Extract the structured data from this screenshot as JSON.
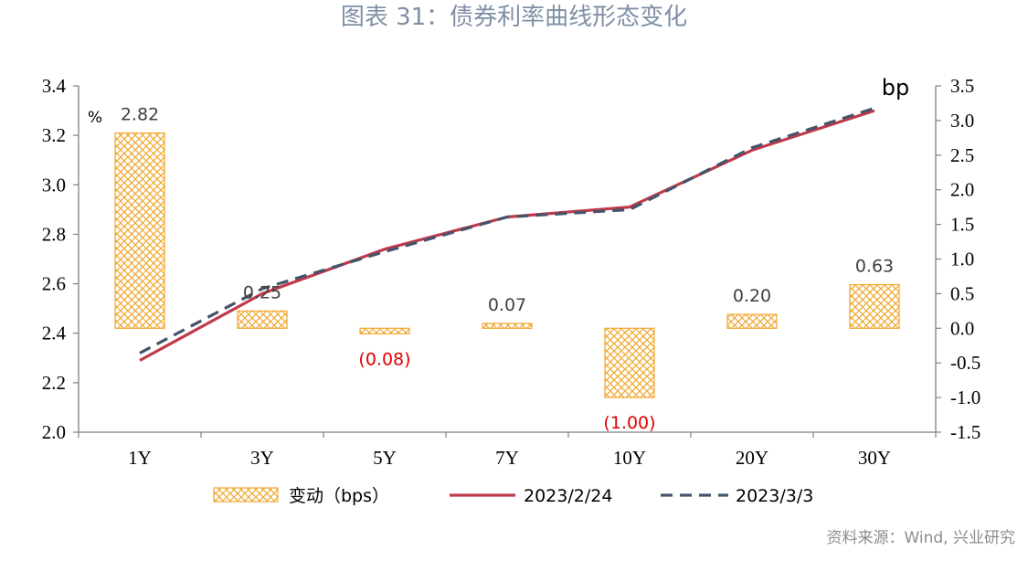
{
  "title": "图表 31：债券利率曲线形态变化",
  "source": "资料来源：Wind, 兴业研究",
  "chart_data": {
    "type": "bar+line",
    "categories": [
      "1Y",
      "3Y",
      "5Y",
      "7Y",
      "10Y",
      "20Y",
      "30Y"
    ],
    "left_axis": {
      "unit": "%",
      "ylim": [
        2.0,
        3.4
      ],
      "ticks": [
        "2.0",
        "2.2",
        "2.4",
        "2.6",
        "2.8",
        "3.0",
        "3.2",
        "3.4"
      ]
    },
    "right_axis": {
      "unit": "bp",
      "ylim": [
        -1.5,
        3.5
      ],
      "ticks": [
        "-1.5",
        "-1.0",
        "-0.5",
        "0.0",
        "0.5",
        "1.0",
        "1.5",
        "2.0",
        "2.5",
        "3.0",
        "3.5"
      ]
    },
    "bars": {
      "name": "变动（bps）",
      "axis": "right",
      "values": [
        2.82,
        0.25,
        -0.08,
        0.07,
        -1.0,
        0.2,
        0.63
      ],
      "labels": [
        "2.82",
        "0.25",
        "(0.08)",
        "0.07",
        "(1.00)",
        "0.20",
        "0.63"
      ],
      "color": "#f0a830",
      "negative_label_color": "#e00000",
      "positive_label_color": "#404040"
    },
    "series": [
      {
        "name": "2023/2/24",
        "axis": "left",
        "style": "solid",
        "color": "#c0394b",
        "values": [
          2.29,
          2.56,
          2.74,
          2.87,
          2.91,
          3.14,
          3.3
        ]
      },
      {
        "name": "2023/3/3",
        "axis": "left",
        "style": "dashed",
        "color": "#44546a",
        "values": [
          2.32,
          2.58,
          2.73,
          2.87,
          2.9,
          3.15,
          3.31
        ]
      }
    ],
    "grid": false,
    "legend_position": "bottom"
  }
}
